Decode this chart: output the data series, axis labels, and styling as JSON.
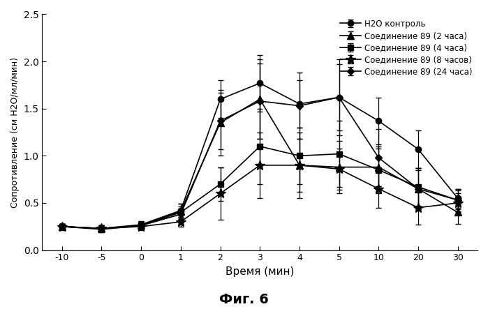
{
  "x_values": [
    -10,
    -5,
    0,
    1,
    2,
    3,
    4,
    5,
    10,
    20,
    30
  ],
  "x_positions": [
    0,
    1,
    2,
    3,
    4,
    5,
    6,
    7,
    8,
    9,
    10
  ],
  "series": {
    "H2O контроль": {
      "y": [
        0.25,
        0.23,
        0.27,
        0.42,
        1.6,
        1.77,
        1.55,
        1.62,
        1.37,
        1.07,
        0.55
      ],
      "yerr": [
        0.03,
        0.03,
        0.04,
        0.07,
        0.2,
        0.3,
        0.25,
        0.35,
        0.25,
        0.2,
        0.1
      ],
      "marker": "o",
      "markersize": 6
    },
    "Соединение 89 (2 часа)": {
      "y": [
        0.25,
        0.23,
        0.26,
        0.41,
        1.35,
        1.6,
        0.9,
        0.88,
        0.88,
        0.65,
        0.4
      ],
      "yerr": [
        0.03,
        0.03,
        0.04,
        0.08,
        0.35,
        0.42,
        0.28,
        0.28,
        0.2,
        0.2,
        0.12
      ],
      "marker": "^",
      "markersize": 7
    },
    "Соединение 89 (4 часа)": {
      "y": [
        0.25,
        0.22,
        0.26,
        0.4,
        0.7,
        1.1,
        1.0,
        1.02,
        0.85,
        0.67,
        0.53
      ],
      "yerr": [
        0.03,
        0.03,
        0.04,
        0.06,
        0.18,
        0.4,
        0.3,
        0.35,
        0.25,
        0.2,
        0.1
      ],
      "marker": "s",
      "markersize": 6
    },
    "Соединение 89 (8 часов)": {
      "y": [
        0.25,
        0.23,
        0.25,
        0.3,
        0.6,
        0.9,
        0.9,
        0.86,
        0.65,
        0.45,
        0.5
      ],
      "yerr": [
        0.03,
        0.03,
        0.04,
        0.05,
        0.28,
        0.35,
        0.35,
        0.22,
        0.2,
        0.18,
        0.1
      ],
      "marker": "*",
      "markersize": 10
    },
    "Соединение 89 (24 часа)": {
      "y": [
        0.25,
        0.23,
        0.26,
        0.38,
        1.37,
        1.58,
        1.53,
        1.62,
        0.98,
        0.65,
        0.53
      ],
      "yerr": [
        0.03,
        0.03,
        0.04,
        0.06,
        0.3,
        0.4,
        0.35,
        0.4,
        0.3,
        0.22,
        0.12
      ],
      "marker": "D",
      "markersize": 5
    }
  },
  "xlabel": "Время (мин)",
  "ylabel": "Сопротивление (см Н2О/мл/мин)",
  "ylim": [
    0.0,
    2.5
  ],
  "yticks": [
    0.0,
    0.5,
    1.0,
    1.5,
    2.0,
    2.5
  ],
  "figure_title": "Фиг. 6",
  "background_color": "#ffffff",
  "color": "#000000"
}
